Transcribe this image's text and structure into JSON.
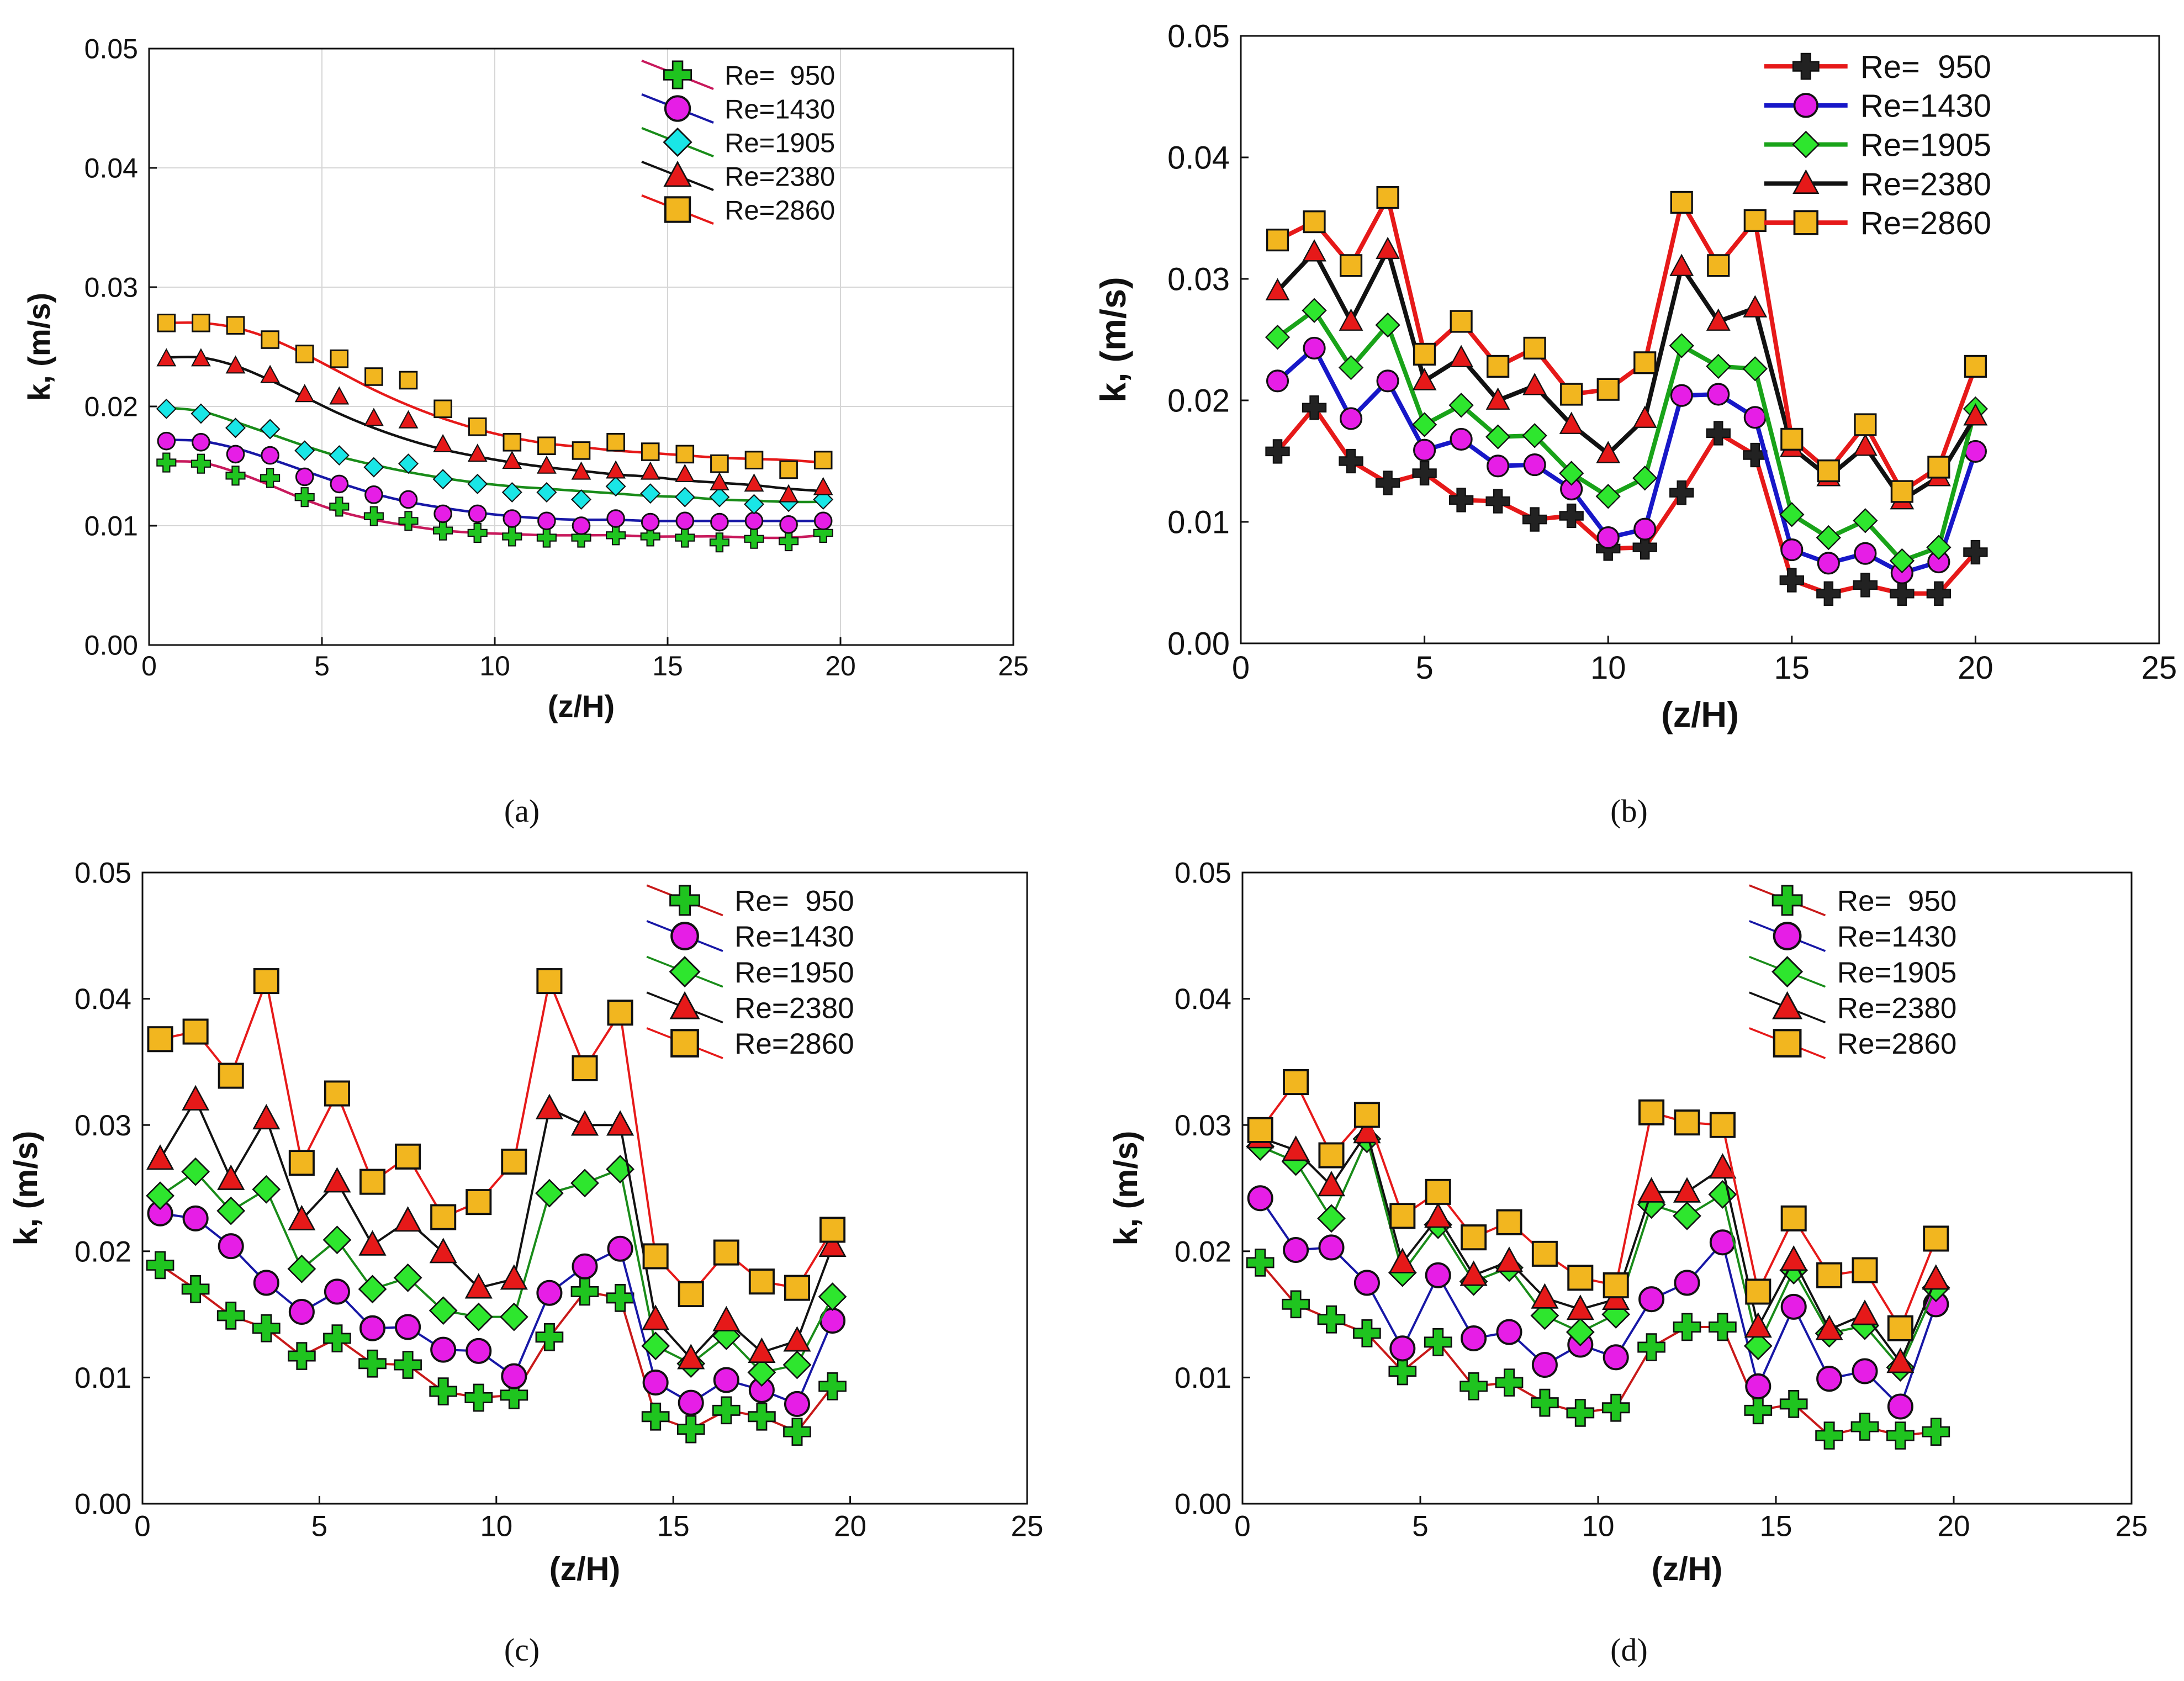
{
  "chart_data": [
    {
      "id": "a",
      "type": "scatter",
      "panel_label": "(a)",
      "xlabel": "(z/H)",
      "ylabel": "k, (m/s)",
      "xlim": [
        0,
        25
      ],
      "ylim": [
        0,
        0.05
      ],
      "x_ticks": [
        "0",
        "5",
        "10",
        "15",
        "20",
        "25"
      ],
      "y_ticks": [
        "0.00",
        "0.01",
        "0.02",
        "0.03",
        "0.04",
        "0.05"
      ],
      "grid": true,
      "legend_position": "top-right",
      "style": "fitted-curves",
      "x": [
        0.5,
        1.5,
        2.5,
        3.5,
        4.5,
        5.5,
        6.5,
        7.5,
        8.5,
        9.5,
        10.5,
        11.5,
        12.5,
        13.5,
        14.5,
        15.5,
        16.5,
        17.5,
        18.5,
        19.5
      ],
      "series": [
        {
          "name": "Re=  950",
          "marker": "cross",
          "marker_color": "#1fc41f",
          "line_color": "#c8195c",
          "values": [
            0.0153,
            0.0152,
            0.0142,
            0.014,
            0.0124,
            0.0116,
            0.0108,
            0.0104,
            0.0096,
            0.0094,
            0.0091,
            0.009,
            0.009,
            0.0092,
            0.0091,
            0.009,
            0.0086,
            0.0089,
            0.0087,
            0.0094
          ],
          "fit": [
            0.0154,
            0.0153,
            0.0145,
            0.0134,
            0.0122,
            0.0112,
            0.0105,
            0.01,
            0.0096,
            0.0094,
            0.0093,
            0.0092,
            0.0092,
            0.0092,
            0.0091,
            0.0091,
            0.0091,
            0.009,
            0.009,
            0.0092
          ]
        },
        {
          "name": "Re=1430",
          "marker": "circle",
          "marker_color": "#e61ee6",
          "line_color": "#1717a6",
          "values": [
            0.0171,
            0.017,
            0.016,
            0.0159,
            0.0141,
            0.0135,
            0.0126,
            0.0122,
            0.011,
            0.011,
            0.0106,
            0.0104,
            0.01,
            0.0106,
            0.0103,
            0.0104,
            0.0103,
            0.0104,
            0.0101,
            0.0104
          ],
          "fit": [
            0.0172,
            0.0171,
            0.0165,
            0.0156,
            0.0146,
            0.0136,
            0.0127,
            0.012,
            0.0115,
            0.0111,
            0.0108,
            0.0106,
            0.0105,
            0.0105,
            0.0104,
            0.0104,
            0.0104,
            0.0104,
            0.0104,
            0.0104
          ]
        },
        {
          "name": "Re=1905",
          "marker": "diamond",
          "marker_color": "#19e6e6",
          "line_color": "#198c19",
          "values": [
            0.0198,
            0.0194,
            0.0182,
            0.0181,
            0.0163,
            0.0159,
            0.0149,
            0.0152,
            0.0139,
            0.0135,
            0.0128,
            0.0128,
            0.0122,
            0.0133,
            0.0127,
            0.0124,
            0.0124,
            0.0118,
            0.012,
            0.0122
          ],
          "fit": [
            0.0199,
            0.0196,
            0.0187,
            0.0177,
            0.0167,
            0.0158,
            0.0151,
            0.0145,
            0.014,
            0.0136,
            0.0133,
            0.0131,
            0.0129,
            0.0127,
            0.0125,
            0.0124,
            0.0122,
            0.0121,
            0.012,
            0.012
          ]
        },
        {
          "name": "Re=2380",
          "marker": "triangle",
          "marker_color": "#e61919",
          "line_color": "#111111",
          "values": [
            0.024,
            0.024,
            0.0234,
            0.0226,
            0.021,
            0.0208,
            0.019,
            0.0188,
            0.0168,
            0.016,
            0.0154,
            0.015,
            0.0145,
            0.0146,
            0.0145,
            0.0143,
            0.0136,
            0.0135,
            0.0126,
            0.0132
          ],
          "fit": [
            0.0241,
            0.0241,
            0.0234,
            0.0222,
            0.0208,
            0.0194,
            0.0182,
            0.0172,
            0.0164,
            0.0158,
            0.0153,
            0.0149,
            0.0146,
            0.0143,
            0.0141,
            0.0138,
            0.0136,
            0.0134,
            0.0131,
            0.0129
          ]
        },
        {
          "name": "Re=2860",
          "marker": "square",
          "marker_color": "#f2b61f",
          "line_color": "#e61919",
          "values": [
            0.027,
            0.027,
            0.0268,
            0.0256,
            0.0244,
            0.024,
            0.0225,
            0.0222,
            0.0198,
            0.0183,
            0.017,
            0.0167,
            0.0163,
            0.017,
            0.0162,
            0.016,
            0.0152,
            0.0155,
            0.0147,
            0.0155
          ],
          "fit": [
            0.027,
            0.027,
            0.0266,
            0.0257,
            0.0244,
            0.0229,
            0.0214,
            0.0201,
            0.019,
            0.0181,
            0.0174,
            0.0169,
            0.0166,
            0.0163,
            0.0161,
            0.0159,
            0.0157,
            0.0156,
            0.0155,
            0.0153
          ]
        }
      ]
    },
    {
      "id": "b",
      "type": "line",
      "panel_label": "(b)",
      "xlabel": "(z/H)",
      "ylabel": "k, (m/s)",
      "xlim": [
        0,
        25
      ],
      "ylim": [
        0,
        0.05
      ],
      "x_ticks": [
        "0",
        "5",
        "10",
        "15",
        "20",
        "25"
      ],
      "y_ticks": [
        "0.00",
        "0.01",
        "0.02",
        "0.03",
        "0.04",
        "0.05"
      ],
      "grid": false,
      "legend_position": "top-right",
      "style": "bold-lines",
      "x": [
        1,
        2,
        3,
        4,
        5,
        6,
        7,
        8,
        9,
        10,
        11,
        12,
        13,
        14,
        15,
        16,
        17,
        18,
        19,
        20
      ],
      "series": [
        {
          "name": "Re=  950",
          "marker": "cross",
          "marker_color": "#222222",
          "line_color": "#e61919",
          "values": [
            0.0158,
            0.0194,
            0.015,
            0.0132,
            0.014,
            0.0118,
            0.0117,
            0.0102,
            0.0105,
            0.0078,
            0.0079,
            0.0124,
            0.0173,
            0.0155,
            0.0052,
            0.0041,
            0.0048,
            0.0041,
            0.0041,
            0.0075
          ]
        },
        {
          "name": "Re=1430",
          "marker": "circle",
          "marker_color": "#e61ee6",
          "line_color": "#1717c8",
          "values": [
            0.0216,
            0.0243,
            0.0185,
            0.0216,
            0.0159,
            0.0168,
            0.0146,
            0.0147,
            0.0127,
            0.0087,
            0.0094,
            0.0204,
            0.0205,
            0.0186,
            0.0077,
            0.0066,
            0.0074,
            0.0058,
            0.0067,
            0.0158
          ]
        },
        {
          "name": "Re=1905",
          "marker": "diamond",
          "marker_color": "#2ee62e",
          "line_color": "#19a319",
          "values": [
            0.0252,
            0.0274,
            0.0227,
            0.0262,
            0.018,
            0.0196,
            0.017,
            0.0171,
            0.014,
            0.0121,
            0.0136,
            0.0245,
            0.0228,
            0.0226,
            0.0106,
            0.0087,
            0.0101,
            0.0068,
            0.0079,
            0.0193
          ]
        },
        {
          "name": "Re=2380",
          "marker": "triangle",
          "marker_color": "#e61919",
          "line_color": "#111111",
          "values": [
            0.029,
            0.0322,
            0.0265,
            0.0324,
            0.0216,
            0.0235,
            0.02,
            0.0212,
            0.018,
            0.0156,
            0.0185,
            0.031,
            0.0265,
            0.0276,
            0.0161,
            0.0137,
            0.0162,
            0.0118,
            0.0137,
            0.0187
          ]
        },
        {
          "name": "Re=2860",
          "marker": "square",
          "marker_color": "#f2b61f",
          "line_color": "#e61919",
          "values": [
            0.0332,
            0.0347,
            0.0311,
            0.0367,
            0.0238,
            0.0265,
            0.0228,
            0.0243,
            0.0205,
            0.0209,
            0.0231,
            0.0363,
            0.0311,
            0.0348,
            0.0168,
            0.0142,
            0.018,
            0.0125,
            0.0145,
            0.0228
          ]
        }
      ]
    },
    {
      "id": "c",
      "type": "line",
      "panel_label": "(c)",
      "xlabel": "(z/H)",
      "ylabel": "k, (m/s)",
      "xlim": [
        0,
        25
      ],
      "ylim": [
        0,
        0.05
      ],
      "x_ticks": [
        "0",
        "5",
        "10",
        "15",
        "20",
        "25"
      ],
      "y_ticks": [
        "0.00",
        "0.01",
        "0.02",
        "0.03",
        "0.04",
        "0.05"
      ],
      "grid": false,
      "legend_position": "top-right",
      "style": "thin-lines",
      "x": [
        0.5,
        1.5,
        2.5,
        3.5,
        4.5,
        5.5,
        6.5,
        7.5,
        8.5,
        9.5,
        10.5,
        11.5,
        12.5,
        13.5,
        14.5,
        15.5,
        16.5,
        17.5,
        18.5,
        19.5
      ],
      "series": [
        {
          "name": "Re=  950",
          "marker": "cross",
          "marker_color": "#1fc41f",
          "line_color": "#c81919",
          "values": [
            0.0189,
            0.017,
            0.0149,
            0.0139,
            0.0117,
            0.0131,
            0.0111,
            0.011,
            0.0089,
            0.0084,
            0.0086,
            0.0132,
            0.0168,
            0.0163,
            0.0069,
            0.0059,
            0.0074,
            0.0069,
            0.0057,
            0.0093
          ]
        },
        {
          "name": "Re=1430",
          "marker": "circle",
          "marker_color": "#e61ee6",
          "line_color": "#1717a6",
          "values": [
            0.023,
            0.0226,
            0.0204,
            0.0175,
            0.0152,
            0.0168,
            0.0139,
            0.014,
            0.0122,
            0.0121,
            0.0101,
            0.0167,
            0.0188,
            0.0202,
            0.0096,
            0.008,
            0.0098,
            0.009,
            0.0079,
            0.0145
          ]
        },
        {
          "name": "Re=1950",
          "marker": "diamond",
          "marker_color": "#2ee62e",
          "line_color": "#198c19",
          "values": [
            0.0244,
            0.0263,
            0.0232,
            0.0249,
            0.0186,
            0.0209,
            0.017,
            0.0179,
            0.0153,
            0.0148,
            0.0148,
            0.0246,
            0.0254,
            0.0265,
            0.0125,
            0.0111,
            0.0133,
            0.0104,
            0.011,
            0.0164
          ]
        },
        {
          "name": "Re=2380",
          "marker": "triangle",
          "marker_color": "#e61919",
          "line_color": "#111111",
          "values": [
            0.0273,
            0.032,
            0.0257,
            0.0305,
            0.0225,
            0.0255,
            0.0205,
            0.0224,
            0.0199,
            0.0171,
            0.0178,
            0.0313,
            0.03,
            0.03,
            0.0146,
            0.0115,
            0.0145,
            0.012,
            0.0129,
            0.0204
          ]
        },
        {
          "name": "Re=2860",
          "marker": "square",
          "marker_color": "#f2b61f",
          "line_color": "#e61919",
          "values": [
            0.0368,
            0.0374,
            0.0339,
            0.0414,
            0.027,
            0.0325,
            0.0255,
            0.0275,
            0.0227,
            0.0239,
            0.0271,
            0.0414,
            0.0345,
            0.0389,
            0.0196,
            0.0166,
            0.0199,
            0.0176,
            0.0171,
            0.0217
          ]
        }
      ]
    },
    {
      "id": "d",
      "type": "line",
      "panel_label": "(d)",
      "xlabel": "(z/H)",
      "ylabel": "k, (m/s)",
      "xlim": [
        0,
        25
      ],
      "ylim": [
        0,
        0.05
      ],
      "x_ticks": [
        "0",
        "5",
        "10",
        "15",
        "20",
        "25"
      ],
      "y_ticks": [
        "0.00",
        "0.01",
        "0.02",
        "0.03",
        "0.04",
        "0.05"
      ],
      "grid": false,
      "legend_position": "top-right",
      "style": "thin-lines",
      "x": [
        0.5,
        1.5,
        2.5,
        3.5,
        4.5,
        5.5,
        6.5,
        7.5,
        8.5,
        9.5,
        10.5,
        11.5,
        12.5,
        13.5,
        14.5,
        15.5,
        16.5,
        17.5,
        18.5,
        19.5
      ],
      "series": [
        {
          "name": "Re=  950",
          "marker": "cross",
          "marker_color": "#1fc41f",
          "line_color": "#c81919",
          "values": [
            0.0191,
            0.0158,
            0.0146,
            0.0135,
            0.0105,
            0.0128,
            0.0093,
            0.0096,
            0.008,
            0.0072,
            0.0076,
            0.0124,
            0.014,
            0.014,
            0.0074,
            0.0079,
            0.0054,
            0.0061,
            0.0054,
            0.0057
          ]
        },
        {
          "name": "Re=1430",
          "marker": "circle",
          "marker_color": "#e61ee6",
          "line_color": "#1717a6",
          "values": [
            0.0242,
            0.0201,
            0.0203,
            0.0175,
            0.0123,
            0.0181,
            0.0131,
            0.0136,
            0.011,
            0.0126,
            0.0116,
            0.0162,
            0.0175,
            0.0207,
            0.0093,
            0.0156,
            0.0099,
            0.0105,
            0.0077,
            0.0158
          ]
        },
        {
          "name": "Re=1905",
          "marker": "diamond",
          "marker_color": "#2ee62e",
          "line_color": "#198c19",
          "values": [
            0.0283,
            0.0271,
            0.0226,
            0.0289,
            0.0183,
            0.0221,
            0.0176,
            0.0187,
            0.0149,
            0.0136,
            0.015,
            0.0237,
            0.0228,
            0.0245,
            0.0125,
            0.0185,
            0.0135,
            0.0141,
            0.0108,
            0.0171
          ]
        },
        {
          "name": "Re=2380",
          "marker": "triangle",
          "marker_color": "#e61919",
          "line_color": "#111111",
          "values": [
            0.029,
            0.028,
            0.0252,
            0.0294,
            0.0191,
            0.0227,
            0.0181,
            0.0192,
            0.0163,
            0.0154,
            0.0162,
            0.0247,
            0.0247,
            0.0266,
            0.014,
            0.0193,
            0.0138,
            0.015,
            0.0112,
            0.0178
          ]
        },
        {
          "name": "Re=2860",
          "marker": "square",
          "marker_color": "#f2b61f",
          "line_color": "#e61919",
          "values": [
            0.0296,
            0.0334,
            0.0276,
            0.0308,
            0.0228,
            0.0247,
            0.0211,
            0.0223,
            0.0198,
            0.0179,
            0.0173,
            0.031,
            0.0302,
            0.03,
            0.0168,
            0.0226,
            0.0181,
            0.0185,
            0.0139,
            0.021
          ]
        }
      ]
    }
  ]
}
